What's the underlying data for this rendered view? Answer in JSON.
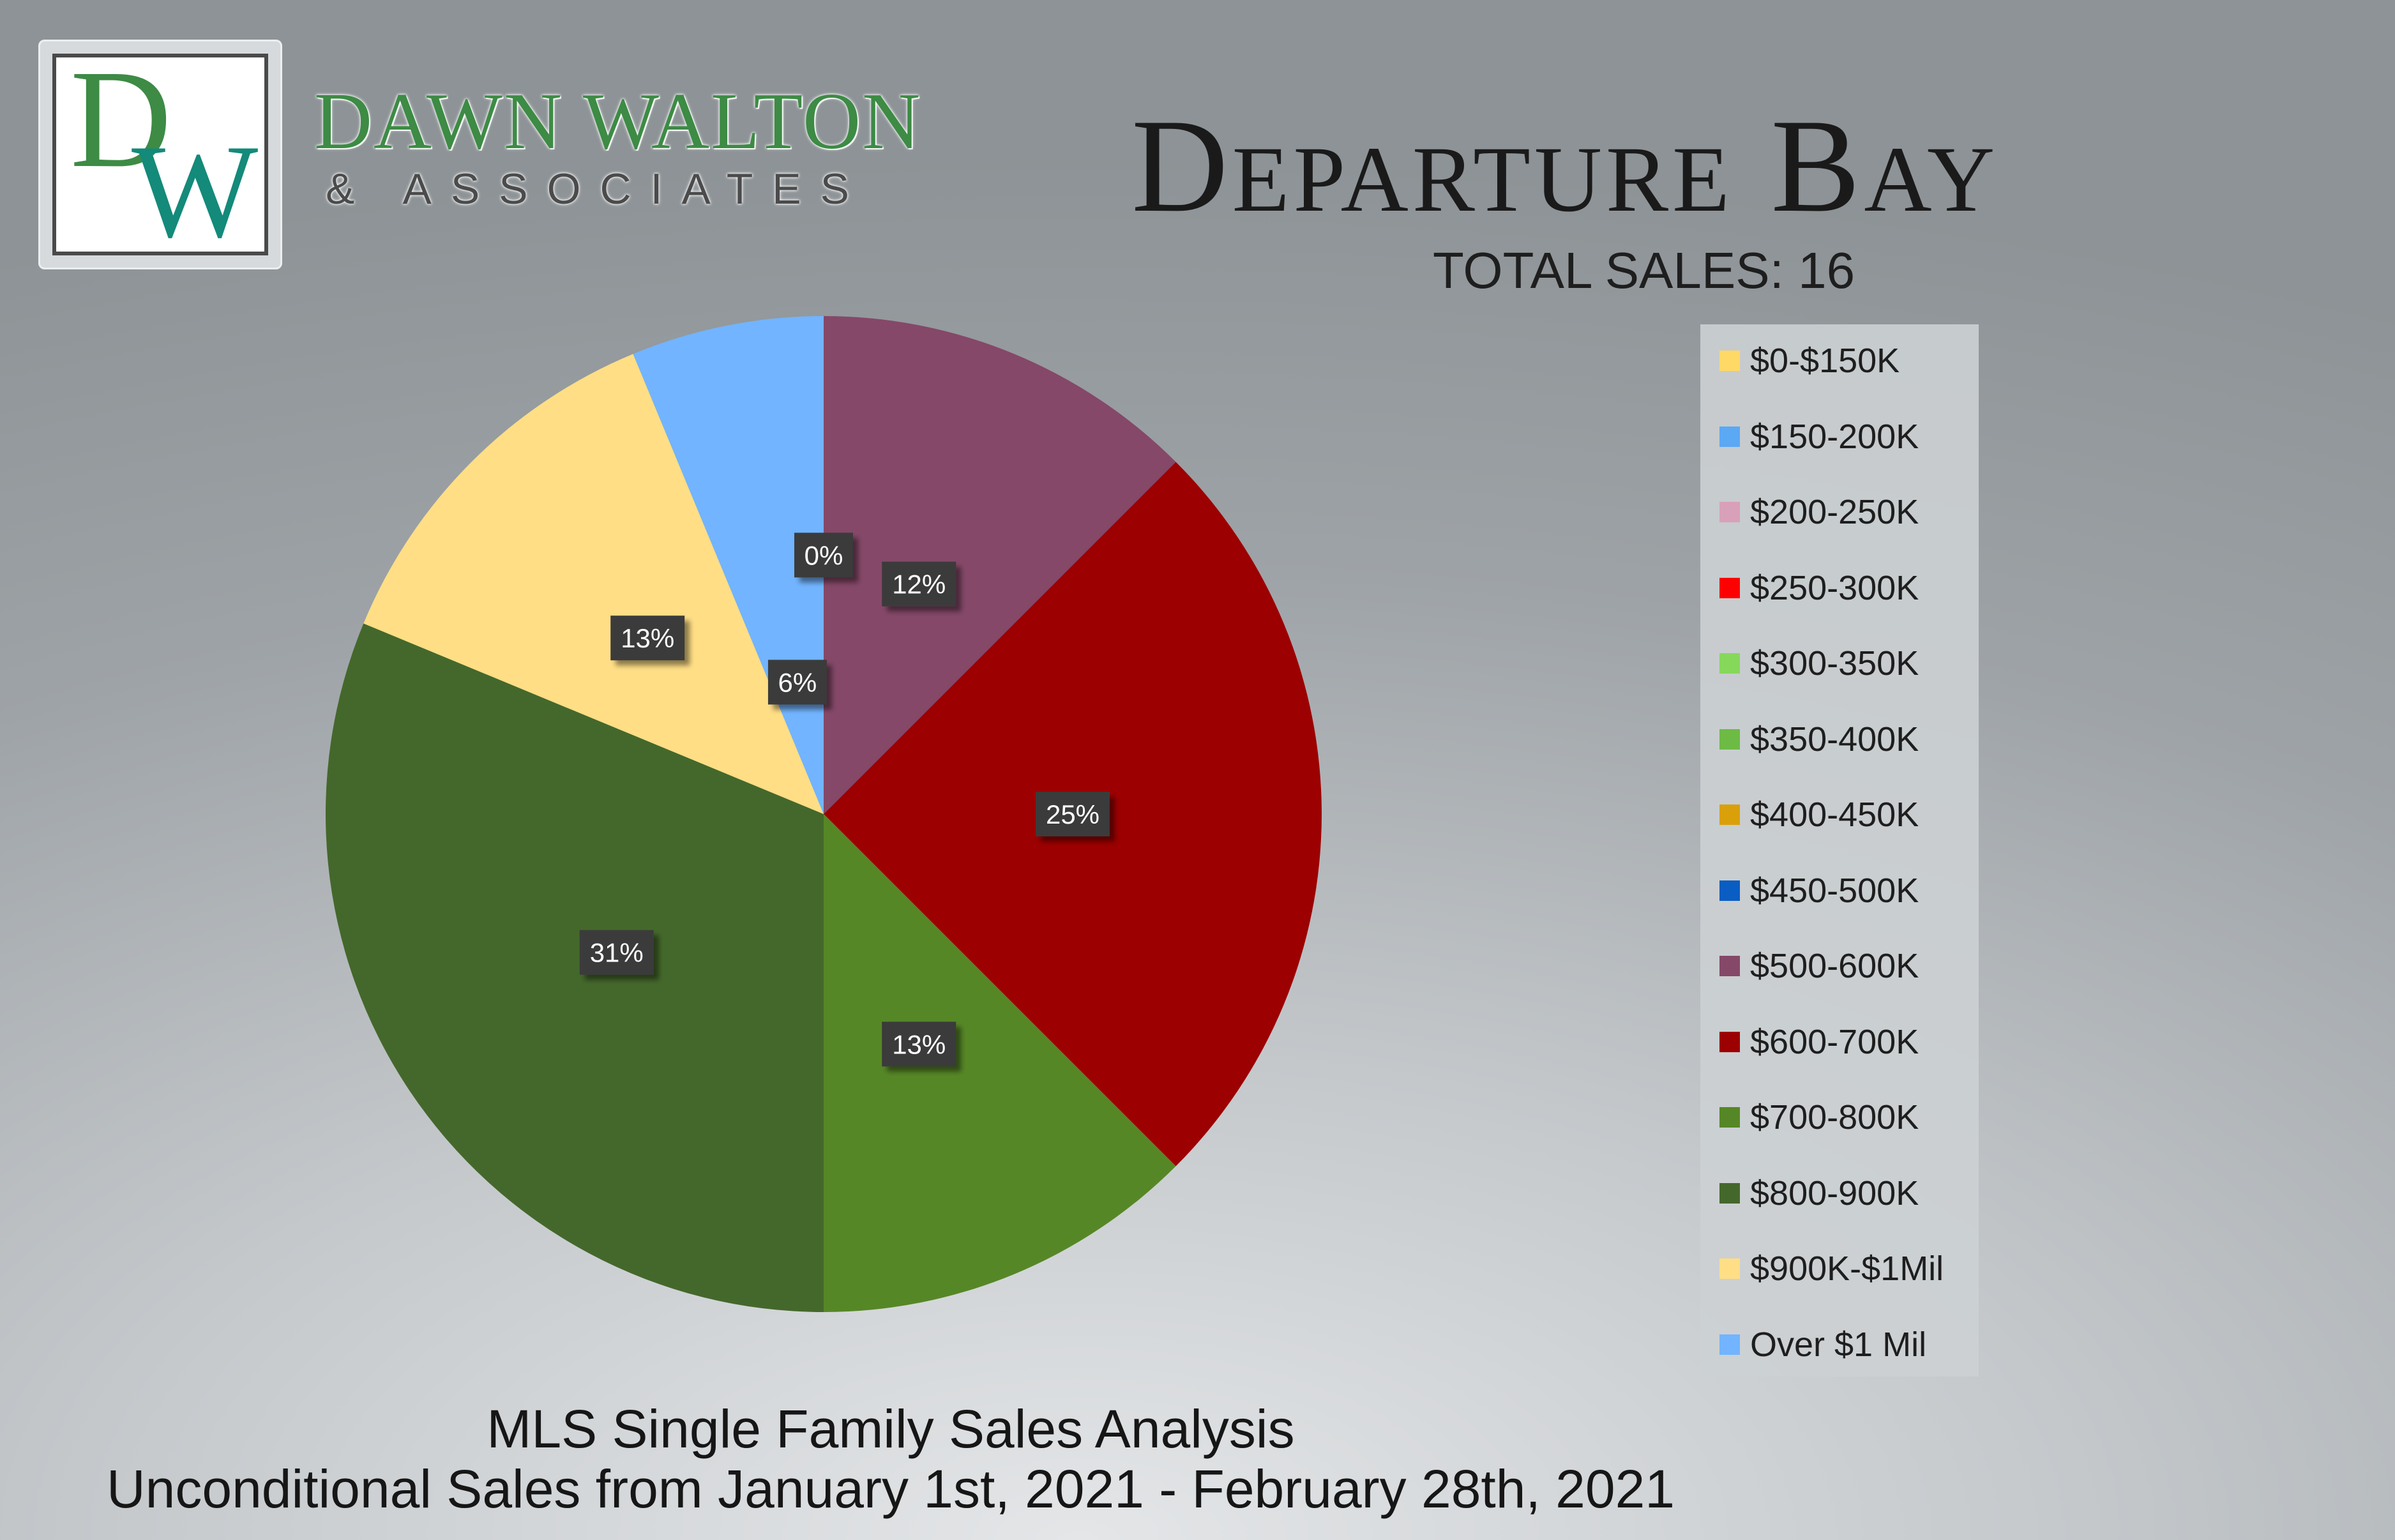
{
  "brand": {
    "monogram": "DW",
    "name": "DAWN WALTON",
    "subtitle": "& ASSOCIATES",
    "colors": {
      "green": "#3d8b45",
      "teal": "#138a7a"
    }
  },
  "header": {
    "title": "Departure Bay",
    "total_sales": "TOTAL SALES: 16"
  },
  "footer": {
    "line1": "MLS Single Family Sales Analysis",
    "line2": "Unconditional Sales from January 1st, 2021 - February 28th, 2021"
  },
  "chart_data": {
    "type": "pie",
    "title": "Departure Bay",
    "legend_position": "right",
    "slices": [
      {
        "label": "$0-$150K",
        "value": 0,
        "color": "#ffd966",
        "data_label": ""
      },
      {
        "label": "$150-200K",
        "value": 0,
        "color": "#5ba8f5",
        "data_label": ""
      },
      {
        "label": "$200-250K",
        "value": 0,
        "color": "#d9a0b9",
        "data_label": ""
      },
      {
        "label": "$250-300K",
        "value": 0,
        "color": "#ff0000",
        "data_label": ""
      },
      {
        "label": "$300-350K",
        "value": 0,
        "color": "#86d85a",
        "data_label": ""
      },
      {
        "label": "$350-400K",
        "value": 0,
        "color": "#6dbb45",
        "data_label": ""
      },
      {
        "label": "$400-450K",
        "value": 0,
        "color": "#d9a00a",
        "data_label": ""
      },
      {
        "label": "$450-500K",
        "value": 0,
        "color": "#0a5dc2",
        "data_label": ""
      },
      {
        "label": "$500-600K",
        "value": 12.5,
        "color": "#854868",
        "data_label": "12%"
      },
      {
        "label": "$600-700K",
        "value": 25,
        "color": "#9c0000",
        "data_label": "25%"
      },
      {
        "label": "$700-800K",
        "value": 12.5,
        "color": "#568726",
        "data_label": "13%"
      },
      {
        "label": "$800-900K",
        "value": 31.25,
        "color": "#44682b",
        "data_label": "31%"
      },
      {
        "label": "$900K-$1Mil",
        "value": 12.5,
        "color": "#ffde85",
        "data_label": "13%"
      },
      {
        "label": "Over $1 Mil",
        "value": 6.25,
        "color": "#72b4ff",
        "data_label": "6%"
      }
    ],
    "zero_label": "0%"
  }
}
